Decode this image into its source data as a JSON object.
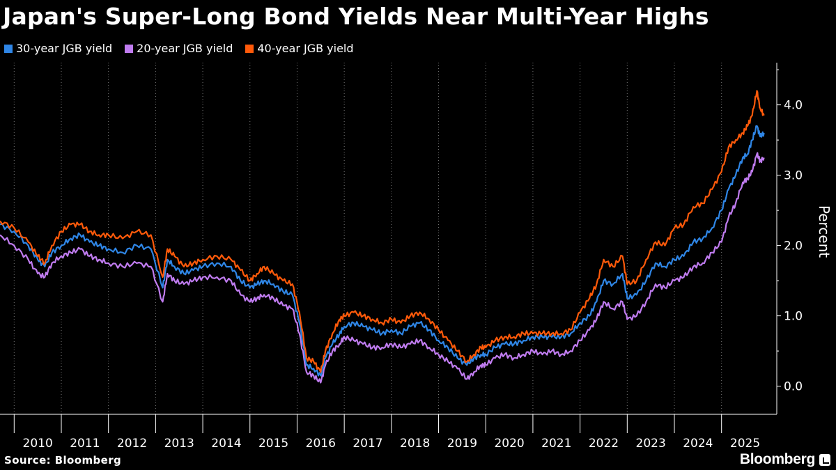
{
  "title": "Japan's Super-Long Bond Yields Near Multi-Year Highs",
  "source": "Source: Bloomberg",
  "brand": "Bloomberg",
  "colors": {
    "background": "#000000",
    "series_30y": "#2f86e6",
    "series_20y": "#c07cf0",
    "series_40y": "#ff5a0a",
    "grid": "#777777"
  },
  "chart_data": {
    "type": "line",
    "title": "Japan's Super-Long Bond Yields Near Multi-Year Highs",
    "xlabel": "",
    "ylabel": "Percent",
    "xlim": [
      2009.7,
      2025.95
    ],
    "ylim": [
      -0.4,
      4.6
    ],
    "x_ticks": [
      "2010",
      "2011",
      "2012",
      "2013",
      "2014",
      "2015",
      "2016",
      "2017",
      "2018",
      "2019",
      "2020",
      "2021",
      "2022",
      "2023",
      "2024",
      "2025"
    ],
    "y_ticks": [
      "0.0",
      "1.0",
      "2.0",
      "3.0",
      "4.0"
    ],
    "y_tick_values": [
      0,
      1,
      2,
      3,
      4
    ],
    "grid": "vertical dotted",
    "legend_position": "top-left",
    "series": [
      {
        "name": "30-year JGB yield",
        "color": "#2f86e6",
        "x": [
          2009.7,
          2010.0,
          2010.3,
          2010.5,
          2010.65,
          2010.8,
          2011.0,
          2011.2,
          2011.4,
          2011.6,
          2011.8,
          2012.0,
          2012.3,
          2012.6,
          2012.9,
          2013.15,
          2013.25,
          2013.4,
          2013.6,
          2013.8,
          2014.0,
          2014.3,
          2014.6,
          2014.8,
          2015.0,
          2015.15,
          2015.3,
          2015.5,
          2015.7,
          2015.9,
          2016.05,
          2016.2,
          2016.35,
          2016.5,
          2016.6,
          2016.75,
          2016.9,
          2017.0,
          2017.2,
          2017.4,
          2017.6,
          2017.8,
          2018.0,
          2018.2,
          2018.4,
          2018.6,
          2018.8,
          2019.0,
          2019.2,
          2019.4,
          2019.6,
          2019.75,
          2019.9,
          2020.0,
          2020.2,
          2020.4,
          2020.6,
          2020.8,
          2021.0,
          2021.2,
          2021.4,
          2021.6,
          2021.8,
          2022.0,
          2022.2,
          2022.35,
          2022.5,
          2022.7,
          2022.9,
          2023.0,
          2023.2,
          2023.4,
          2023.6,
          2023.8,
          2024.0,
          2024.2,
          2024.4,
          2024.6,
          2024.8,
          2025.0,
          2025.15,
          2025.3,
          2025.45,
          2025.55,
          2025.65,
          2025.75,
          2025.82,
          2025.9
        ],
        "y": [
          2.3,
          2.2,
          2.0,
          1.8,
          1.7,
          1.9,
          2.0,
          2.1,
          2.15,
          2.05,
          2.0,
          1.95,
          1.9,
          2.0,
          1.95,
          1.4,
          1.8,
          1.7,
          1.6,
          1.65,
          1.7,
          1.75,
          1.7,
          1.5,
          1.4,
          1.45,
          1.5,
          1.45,
          1.35,
          1.3,
          0.9,
          0.3,
          0.25,
          0.15,
          0.4,
          0.6,
          0.75,
          0.85,
          0.9,
          0.85,
          0.8,
          0.75,
          0.8,
          0.75,
          0.85,
          0.9,
          0.8,
          0.65,
          0.55,
          0.4,
          0.3,
          0.4,
          0.45,
          0.45,
          0.55,
          0.6,
          0.6,
          0.65,
          0.7,
          0.7,
          0.7,
          0.7,
          0.75,
          0.9,
          1.0,
          1.2,
          1.5,
          1.45,
          1.6,
          1.25,
          1.3,
          1.5,
          1.75,
          1.7,
          1.8,
          1.85,
          2.05,
          2.1,
          2.25,
          2.5,
          2.8,
          3.0,
          3.25,
          3.3,
          3.5,
          3.7,
          3.55,
          3.6
        ]
      },
      {
        "name": "20-year JGB yield",
        "color": "#c07cf0",
        "x": [
          2009.7,
          2010.0,
          2010.3,
          2010.5,
          2010.65,
          2010.8,
          2011.0,
          2011.2,
          2011.4,
          2011.6,
          2011.8,
          2012.0,
          2012.3,
          2012.6,
          2012.9,
          2013.15,
          2013.25,
          2013.4,
          2013.6,
          2013.8,
          2014.0,
          2014.3,
          2014.6,
          2014.8,
          2015.0,
          2015.15,
          2015.3,
          2015.5,
          2015.7,
          2015.9,
          2016.05,
          2016.2,
          2016.35,
          2016.5,
          2016.6,
          2016.75,
          2016.9,
          2017.0,
          2017.2,
          2017.4,
          2017.6,
          2017.8,
          2018.0,
          2018.2,
          2018.4,
          2018.6,
          2018.8,
          2019.0,
          2019.2,
          2019.4,
          2019.6,
          2019.75,
          2019.9,
          2020.0,
          2020.2,
          2020.4,
          2020.6,
          2020.8,
          2021.0,
          2021.2,
          2021.4,
          2021.6,
          2021.8,
          2022.0,
          2022.2,
          2022.35,
          2022.5,
          2022.7,
          2022.9,
          2023.0,
          2023.2,
          2023.4,
          2023.6,
          2023.8,
          2024.0,
          2024.2,
          2024.4,
          2024.6,
          2024.8,
          2025.0,
          2025.15,
          2025.3,
          2025.45,
          2025.55,
          2025.65,
          2025.75,
          2025.82,
          2025.9
        ],
        "y": [
          2.15,
          2.0,
          1.8,
          1.6,
          1.55,
          1.75,
          1.85,
          1.9,
          1.95,
          1.85,
          1.8,
          1.75,
          1.7,
          1.75,
          1.7,
          1.2,
          1.6,
          1.5,
          1.45,
          1.5,
          1.55,
          1.55,
          1.5,
          1.3,
          1.2,
          1.25,
          1.3,
          1.25,
          1.15,
          1.1,
          0.75,
          0.2,
          0.15,
          0.05,
          0.3,
          0.5,
          0.6,
          0.7,
          0.65,
          0.6,
          0.55,
          0.55,
          0.6,
          0.55,
          0.6,
          0.65,
          0.55,
          0.45,
          0.35,
          0.25,
          0.1,
          0.2,
          0.3,
          0.3,
          0.4,
          0.45,
          0.4,
          0.45,
          0.5,
          0.45,
          0.5,
          0.45,
          0.5,
          0.65,
          0.8,
          0.95,
          1.2,
          1.1,
          1.2,
          0.95,
          1.0,
          1.2,
          1.45,
          1.4,
          1.5,
          1.55,
          1.7,
          1.75,
          1.9,
          2.05,
          2.4,
          2.6,
          2.9,
          2.95,
          3.05,
          3.3,
          3.2,
          3.25
        ]
      },
      {
        "name": "40-year JGB yield",
        "color": "#ff5a0a",
        "x": [
          2009.7,
          2010.0,
          2010.3,
          2010.5,
          2010.65,
          2010.8,
          2011.0,
          2011.2,
          2011.4,
          2011.6,
          2011.8,
          2012.0,
          2012.3,
          2012.6,
          2012.9,
          2013.15,
          2013.25,
          2013.4,
          2013.6,
          2013.8,
          2014.0,
          2014.3,
          2014.6,
          2014.8,
          2015.0,
          2015.15,
          2015.3,
          2015.5,
          2015.7,
          2015.9,
          2016.05,
          2016.2,
          2016.35,
          2016.5,
          2016.6,
          2016.75,
          2016.9,
          2017.0,
          2017.2,
          2017.4,
          2017.6,
          2017.8,
          2018.0,
          2018.2,
          2018.4,
          2018.6,
          2018.8,
          2019.0,
          2019.2,
          2019.4,
          2019.6,
          2019.75,
          2019.9,
          2020.0,
          2020.2,
          2020.4,
          2020.6,
          2020.8,
          2021.0,
          2021.2,
          2021.4,
          2021.6,
          2021.8,
          2022.0,
          2022.2,
          2022.35,
          2022.5,
          2022.7,
          2022.9,
          2023.0,
          2023.2,
          2023.4,
          2023.6,
          2023.8,
          2024.0,
          2024.2,
          2024.4,
          2024.6,
          2024.8,
          2025.0,
          2025.15,
          2025.3,
          2025.45,
          2025.55,
          2025.65,
          2025.75,
          2025.82,
          2025.9
        ],
        "y": [
          2.35,
          2.25,
          2.05,
          1.85,
          1.75,
          2.0,
          2.2,
          2.3,
          2.3,
          2.2,
          2.15,
          2.15,
          2.1,
          2.2,
          2.15,
          1.55,
          1.95,
          1.85,
          1.7,
          1.75,
          1.8,
          1.85,
          1.8,
          1.65,
          1.5,
          1.6,
          1.7,
          1.6,
          1.5,
          1.45,
          1.05,
          0.4,
          0.35,
          0.2,
          0.5,
          0.75,
          0.95,
          1.0,
          1.05,
          1.0,
          0.95,
          0.9,
          0.95,
          0.9,
          1.0,
          1.05,
          0.95,
          0.8,
          0.65,
          0.5,
          0.35,
          0.45,
          0.55,
          0.55,
          0.65,
          0.7,
          0.7,
          0.75,
          0.75,
          0.75,
          0.75,
          0.75,
          0.8,
          1.05,
          1.25,
          1.45,
          1.8,
          1.7,
          1.85,
          1.45,
          1.5,
          1.8,
          2.05,
          2.0,
          2.25,
          2.3,
          2.55,
          2.6,
          2.8,
          3.05,
          3.4,
          3.5,
          3.6,
          3.7,
          3.85,
          4.2,
          3.95,
          3.85
        ]
      }
    ]
  }
}
